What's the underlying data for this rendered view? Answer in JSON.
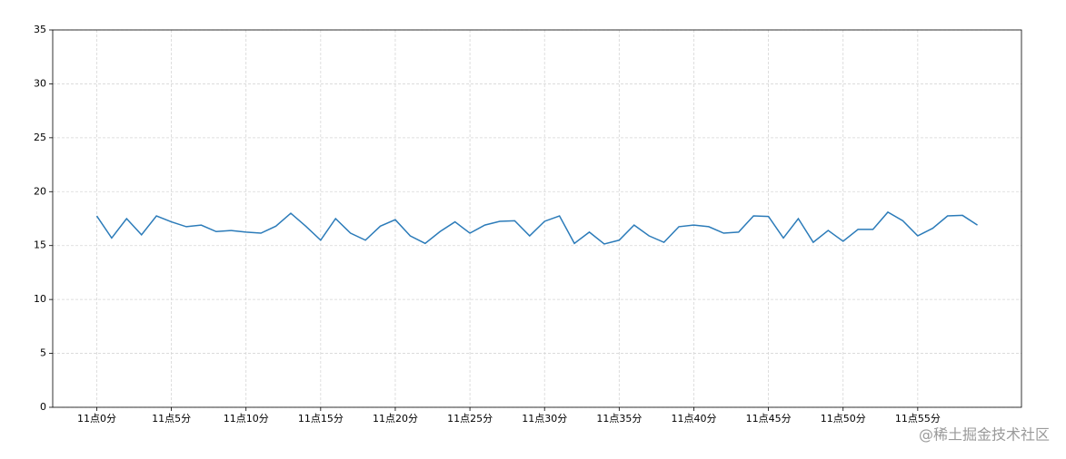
{
  "chart_data": {
    "type": "line",
    "x": [
      0,
      1,
      2,
      3,
      4,
      5,
      6,
      7,
      8,
      9,
      10,
      11,
      12,
      13,
      14,
      15,
      16,
      17,
      18,
      19,
      20,
      21,
      22,
      23,
      24,
      25,
      26,
      27,
      28,
      29,
      30,
      31,
      32,
      33,
      34,
      35,
      36,
      37,
      38,
      39,
      40,
      41,
      42,
      43,
      44,
      45,
      46,
      47,
      48,
      49,
      50,
      51,
      52,
      53,
      54,
      55,
      56,
      57,
      58,
      59
    ],
    "series": [
      {
        "color": "#2b7bb9",
        "values": [
          17.75,
          15.7,
          17.5,
          16.0,
          17.75,
          17.2,
          16.75,
          16.9,
          16.3,
          16.4,
          16.25,
          16.15,
          16.8,
          18.0,
          16.8,
          15.5,
          17.5,
          16.15,
          15.5,
          16.8,
          17.4,
          15.9,
          15.2,
          16.3,
          17.2,
          16.15,
          16.9,
          17.25,
          17.3,
          15.9,
          17.25,
          17.75,
          15.2,
          16.25,
          15.15,
          15.5,
          16.9,
          15.9,
          15.3,
          16.75,
          16.9,
          16.75,
          16.15,
          16.25,
          17.75,
          17.7,
          15.7,
          17.5,
          15.3,
          16.4,
          15.4,
          16.5,
          16.5,
          18.1,
          17.3,
          15.9,
          16.6,
          17.75,
          17.8,
          16.9
        ]
      }
    ],
    "xlim": [
      -2.95,
      61.95
    ],
    "xticks": [
      {
        "value": 0,
        "label": "11点0分"
      },
      {
        "value": 5,
        "label": "11点5分"
      },
      {
        "value": 10,
        "label": "11点10分"
      },
      {
        "value": 15,
        "label": "11点15分"
      },
      {
        "value": 20,
        "label": "11点20分"
      },
      {
        "value": 25,
        "label": "11点25分"
      },
      {
        "value": 30,
        "label": "11点30分"
      },
      {
        "value": 35,
        "label": "11点35分"
      },
      {
        "value": 40,
        "label": "11点40分"
      },
      {
        "value": 45,
        "label": "11点45分"
      },
      {
        "value": 50,
        "label": "11点50分"
      },
      {
        "value": 55,
        "label": "11点55分"
      }
    ],
    "ylim": [
      0,
      35
    ],
    "yticks": [
      0,
      5,
      10,
      15,
      20,
      25,
      30,
      35
    ],
    "grid": true,
    "watermark": "@稀土掘金技术社区"
  }
}
